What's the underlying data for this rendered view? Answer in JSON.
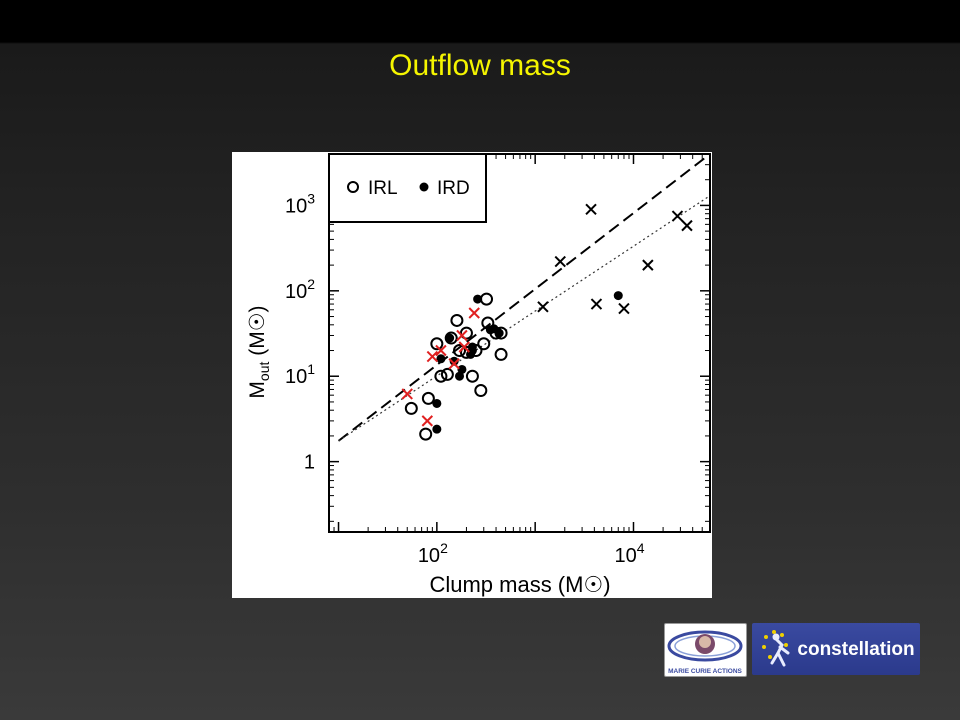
{
  "slide": {
    "title": "Outflow mass",
    "colors": {
      "title": "#f5f500",
      "background_top": "#000000",
      "background_bottom": "#3a3a3a"
    }
  },
  "chart_data": {
    "type": "scatter",
    "title": "",
    "xlabel": "Clump mass (M☉)",
    "ylabel": "Mout (M☉)",
    "x_scale": "log",
    "y_scale": "log",
    "xlim": [
      8,
      60000
    ],
    "ylim": [
      0.15,
      4000
    ],
    "xticks": [
      {
        "value": 100,
        "base": "10",
        "exp": "2"
      },
      {
        "value": 10000,
        "base": "10",
        "exp": "4"
      }
    ],
    "yticks": [
      {
        "value": 1,
        "base": "1",
        "exp": ""
      },
      {
        "value": 10,
        "base": "10",
        "exp": "1"
      },
      {
        "value": 100,
        "base": "10",
        "exp": "2"
      },
      {
        "value": 1000,
        "base": "10",
        "exp": "3"
      }
    ],
    "legend": {
      "position": "top-left",
      "items": [
        "IRL",
        "IRD"
      ]
    },
    "lines": [
      {
        "style": "dashed",
        "points": [
          [
            10,
            1.75
          ],
          [
            60000,
            4000
          ]
        ]
      },
      {
        "style": "dotted",
        "points": [
          [
            10,
            1.75
          ],
          [
            60000,
            1300
          ]
        ]
      }
    ],
    "series": [
      {
        "name": "IRL",
        "marker": "open-circle",
        "color": "#000000",
        "points": [
          [
            55,
            4.2
          ],
          [
            77,
            2.1
          ],
          [
            82,
            5.5
          ],
          [
            100,
            24
          ],
          [
            110,
            10
          ],
          [
            128,
            10.5
          ],
          [
            140,
            28
          ],
          [
            160,
            45
          ],
          [
            170,
            20
          ],
          [
            200,
            32
          ],
          [
            230,
            10
          ],
          [
            280,
            6.8
          ],
          [
            300,
            24
          ],
          [
            330,
            42
          ],
          [
            320,
            80
          ],
          [
            400,
            32
          ],
          [
            450,
            32
          ],
          [
            450,
            18
          ],
          [
            200,
            19
          ],
          [
            250,
            20
          ]
        ]
      },
      {
        "name": "IRD",
        "marker": "filled-circle",
        "color": "#000000",
        "points": [
          [
            100,
            2.4
          ],
          [
            100,
            4.8
          ],
          [
            110,
            16
          ],
          [
            135,
            28
          ],
          [
            150,
            15
          ],
          [
            170,
            10
          ],
          [
            180,
            12
          ],
          [
            220,
            18
          ],
          [
            230,
            22
          ],
          [
            260,
            80
          ],
          [
            350,
            35
          ],
          [
            380,
            36
          ],
          [
            430,
            32
          ],
          [
            7000,
            88
          ],
          [
            230,
            20
          ]
        ]
      },
      {
        "marker": "x",
        "color": "#000000",
        "points": [
          [
            3700,
            900
          ],
          [
            1800,
            220
          ],
          [
            4200,
            70
          ],
          [
            8000,
            62
          ],
          [
            14000,
            200
          ],
          [
            28000,
            750
          ],
          [
            35000,
            580
          ],
          [
            1200,
            65
          ]
        ]
      },
      {
        "marker": "x",
        "color": "#e02020",
        "points": [
          [
            50,
            6.2
          ],
          [
            80,
            3.0
          ],
          [
            90,
            17
          ],
          [
            110,
            20
          ],
          [
            150,
            14
          ],
          [
            180,
            30
          ],
          [
            190,
            22
          ],
          [
            240,
            55
          ]
        ]
      }
    ]
  },
  "logos": {
    "mca_text": "MARIE CURIE ACTIONS",
    "constellation_text": "constellation"
  }
}
